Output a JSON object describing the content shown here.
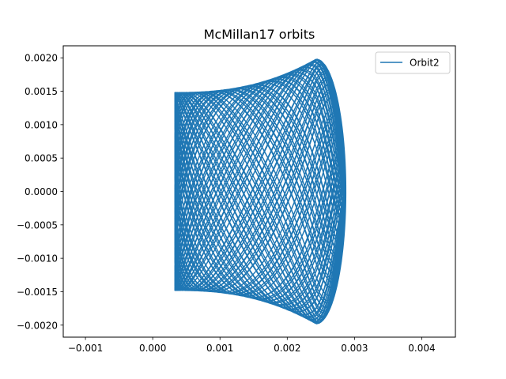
{
  "chart_data": {
    "type": "line",
    "title": "McMillan17 orbits",
    "xlabel": "",
    "ylabel": "",
    "xlim": [
      -0.00133,
      0.0045
    ],
    "ylim": [
      -0.00218,
      0.00218
    ],
    "xticks": [
      -0.001,
      0.0,
      0.001,
      0.002,
      0.003,
      0.004
    ],
    "xtick_labels": [
      "−0.001",
      "0.000",
      "0.001",
      "0.002",
      "0.003",
      "0.004"
    ],
    "yticks": [
      0.002,
      0.0015,
      0.001,
      0.0005,
      0.0,
      -0.0005,
      -0.001,
      -0.0015,
      -0.002
    ],
    "ytick_labels": [
      "0.0020",
      "0.0015",
      "0.0010",
      "0.0005",
      "0.0000",
      "−0.0005",
      "−0.0010",
      "−0.0015",
      "−0.0020"
    ],
    "grid": false,
    "legend_position": "top-right",
    "series": [
      {
        "name": "Orbit2",
        "color": "#1f77b4",
        "orbit": {
          "r_min": 0.00033,
          "r_max": 0.00287,
          "z_max": 0.00198,
          "corner_r": 0.00243,
          "z_at_r_min": 0.00148
        }
      }
    ]
  }
}
